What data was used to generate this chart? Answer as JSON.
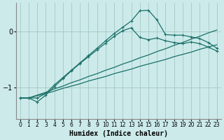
{
  "xlabel": "Humidex (Indice chaleur)",
  "bg_color": "#cceaea",
  "grid_color": "#aacccc",
  "line_color": "#1a7068",
  "xlim": [
    -0.5,
    23.5
  ],
  "ylim": [
    -1.55,
    0.5
  ],
  "yticks": [
    -1,
    0
  ],
  "xticks": [
    0,
    1,
    2,
    3,
    4,
    5,
    6,
    7,
    8,
    9,
    10,
    11,
    12,
    13,
    14,
    15,
    16,
    17,
    18,
    19,
    20,
    21,
    22,
    23
  ],
  "line1_x": [
    0,
    1,
    2,
    3,
    4,
    5,
    6,
    7,
    8,
    9,
    10,
    11,
    12,
    13,
    14,
    15,
    16,
    17,
    18,
    19,
    20,
    21,
    22,
    23
  ],
  "line1_y": [
    -1.18,
    -1.18,
    -1.13,
    -1.08,
    -1.02,
    -0.97,
    -0.91,
    -0.86,
    -0.8,
    -0.75,
    -0.69,
    -0.64,
    -0.58,
    -0.53,
    -0.47,
    -0.42,
    -0.36,
    -0.31,
    -0.25,
    -0.2,
    -0.14,
    -0.09,
    -0.03,
    0.02
  ],
  "line2_x": [
    0,
    1,
    2,
    3,
    4,
    5,
    6,
    7,
    8,
    9,
    10,
    11,
    12,
    13,
    14,
    15,
    16,
    17,
    18,
    19,
    20,
    21,
    22,
    23
  ],
  "line2_y": [
    -1.18,
    -1.18,
    -1.14,
    -1.1,
    -1.06,
    -1.01,
    -0.97,
    -0.93,
    -0.88,
    -0.84,
    -0.8,
    -0.75,
    -0.71,
    -0.67,
    -0.62,
    -0.58,
    -0.54,
    -0.5,
    -0.45,
    -0.41,
    -0.37,
    -0.32,
    -0.28,
    -0.24
  ],
  "line3_x": [
    0,
    1,
    2,
    3,
    4,
    5,
    6,
    7,
    8,
    9,
    10,
    11,
    12,
    13,
    14,
    15,
    16,
    17,
    18,
    19,
    20,
    21,
    22,
    23
  ],
  "line3_y": [
    -1.18,
    -1.18,
    -1.25,
    -1.13,
    -0.98,
    -0.84,
    -0.7,
    -0.57,
    -0.45,
    -0.33,
    -0.21,
    -0.09,
    0.01,
    0.06,
    -0.11,
    -0.15,
    -0.12,
    -0.17,
    -0.2,
    -0.22,
    -0.19,
    -0.22,
    -0.28,
    -0.35
  ],
  "line4_x": [
    0,
    1,
    2,
    3,
    4,
    5,
    6,
    7,
    8,
    9,
    10,
    11,
    12,
    13,
    14,
    15,
    16,
    17,
    18,
    19,
    20,
    21,
    22,
    23
  ],
  "line4_y": [
    -1.18,
    -1.18,
    -1.18,
    -1.1,
    -0.95,
    -0.82,
    -0.69,
    -0.56,
    -0.43,
    -0.3,
    -0.17,
    -0.04,
    0.07,
    0.18,
    0.36,
    0.37,
    0.2,
    -0.06,
    -0.07,
    -0.07,
    -0.1,
    -0.13,
    -0.2,
    -0.3
  ]
}
